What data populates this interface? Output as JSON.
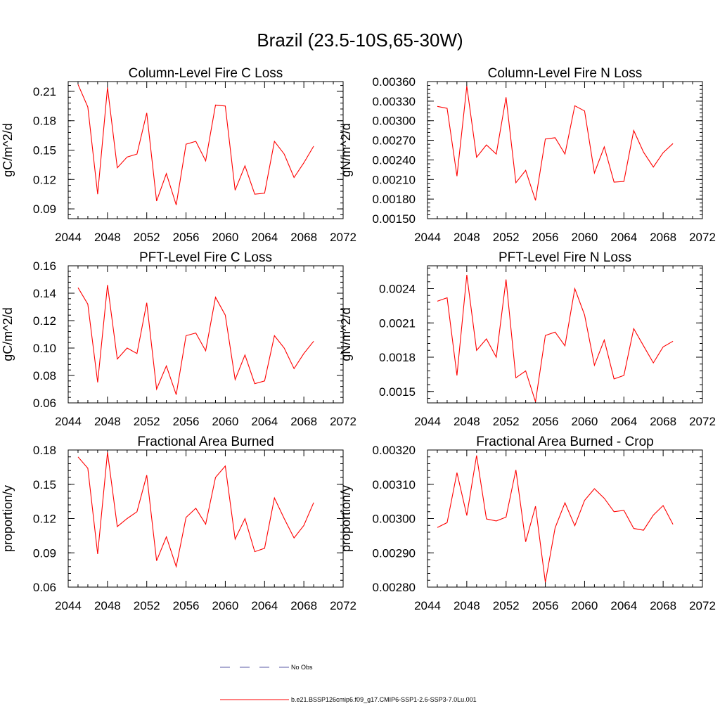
{
  "main_title": "Brazil (23.5-10S,65-30W)",
  "legend": {
    "obs_label": "No Obs",
    "obs_color": "#5a5aa6",
    "model_label": "b.e21.BSSP126cmip6.f09_g17.CMIP6-SSP1-2.6-SSP3-7.0Lu.001",
    "model_color": "#ff0000"
  },
  "chart_data": [
    {
      "type": "line",
      "title": "Column-Level Fire C Loss",
      "ylabel": "gC/m^2/d",
      "xlim": [
        2044,
        2072
      ],
      "xticks": [
        2044,
        2048,
        2052,
        2056,
        2060,
        2064,
        2068,
        2072
      ],
      "ylim": [
        0.08,
        0.22
      ],
      "yticks": [
        0.09,
        0.12,
        0.15,
        0.18,
        0.21
      ],
      "ytick_labels": [
        "0.09",
        "0.12",
        "0.15",
        "0.18",
        "0.21"
      ],
      "x": [
        2045,
        2046,
        2047,
        2048,
        2049,
        2050,
        2051,
        2052,
        2053,
        2054,
        2055,
        2056,
        2057,
        2058,
        2059,
        2060,
        2061,
        2062,
        2063,
        2064,
        2065,
        2066,
        2067,
        2068,
        2069
      ],
      "series": [
        {
          "values": [
            0.217,
            0.194,
            0.105,
            0.214,
            0.132,
            0.143,
            0.146,
            0.188,
            0.098,
            0.126,
            0.094,
            0.156,
            0.159,
            0.139,
            0.196,
            0.195,
            0.109,
            0.134,
            0.105,
            0.106,
            0.159,
            0.146,
            0.122,
            0.137,
            0.154
          ]
        }
      ]
    },
    {
      "type": "line",
      "title": "Column-Level Fire N Loss",
      "ylabel": "gN/m^2/d",
      "xlim": [
        2044,
        2072
      ],
      "xticks": [
        2044,
        2048,
        2052,
        2056,
        2060,
        2064,
        2068,
        2072
      ],
      "ylim": [
        0.0015,
        0.0036
      ],
      "yticks": [
        0.0015,
        0.0018,
        0.0021,
        0.0024,
        0.0027,
        0.003,
        0.0033,
        0.0036
      ],
      "ytick_labels": [
        "0.00150",
        "0.00180",
        "0.00210",
        "0.00240",
        "0.00270",
        "0.00300",
        "0.00330",
        "0.00360"
      ],
      "x": [
        2045,
        2046,
        2047,
        2048,
        2049,
        2050,
        2051,
        2052,
        2053,
        2054,
        2055,
        2056,
        2057,
        2058,
        2059,
        2060,
        2061,
        2062,
        2063,
        2064,
        2065,
        2066,
        2067,
        2068,
        2069
      ],
      "series": [
        {
          "values": [
            0.00322,
            0.00319,
            0.00215,
            0.00353,
            0.00244,
            0.00263,
            0.00249,
            0.00336,
            0.00205,
            0.00224,
            0.00178,
            0.00272,
            0.00274,
            0.00249,
            0.00323,
            0.00315,
            0.0022,
            0.0026,
            0.00206,
            0.00207,
            0.00285,
            0.00252,
            0.00229,
            0.00251,
            0.00265
          ]
        }
      ]
    },
    {
      "type": "line",
      "title": "PFT-Level Fire C Loss",
      "ylabel": "gC/m^2/d",
      "xlim": [
        2044,
        2072
      ],
      "xticks": [
        2044,
        2048,
        2052,
        2056,
        2060,
        2064,
        2068,
        2072
      ],
      "ylim": [
        0.06,
        0.16
      ],
      "yticks": [
        0.06,
        0.08,
        0.1,
        0.12,
        0.14,
        0.16
      ],
      "ytick_labels": [
        "0.06",
        "0.08",
        "0.10",
        "0.12",
        "0.14",
        "0.16"
      ],
      "x": [
        2045,
        2046,
        2047,
        2048,
        2049,
        2050,
        2051,
        2052,
        2053,
        2054,
        2055,
        2056,
        2057,
        2058,
        2059,
        2060,
        2061,
        2062,
        2063,
        2064,
        2065,
        2066,
        2067,
        2068,
        2069
      ],
      "series": [
        {
          "values": [
            0.144,
            0.132,
            0.075,
            0.146,
            0.092,
            0.1,
            0.096,
            0.133,
            0.07,
            0.087,
            0.066,
            0.109,
            0.111,
            0.098,
            0.137,
            0.124,
            0.077,
            0.095,
            0.074,
            0.076,
            0.109,
            0.1,
            0.085,
            0.096,
            0.105
          ]
        }
      ]
    },
    {
      "type": "line",
      "title": "PFT-Level Fire N Loss",
      "ylabel": "gN/m^2/d",
      "xlim": [
        2044,
        2072
      ],
      "xticks": [
        2044,
        2048,
        2052,
        2056,
        2060,
        2064,
        2068,
        2072
      ],
      "ylim": [
        0.0014,
        0.0026
      ],
      "yticks": [
        0.0015,
        0.0018,
        0.0021,
        0.0024
      ],
      "ytick_labels": [
        "0.0015",
        "0.0018",
        "0.0021",
        "0.0024"
      ],
      "x": [
        2045,
        2046,
        2047,
        2048,
        2049,
        2050,
        2051,
        2052,
        2053,
        2054,
        2055,
        2056,
        2057,
        2058,
        2059,
        2060,
        2061,
        2062,
        2063,
        2064,
        2065,
        2066,
        2067,
        2068,
        2069
      ],
      "series": [
        {
          "values": [
            0.00229,
            0.00232,
            0.00164,
            0.00252,
            0.00186,
            0.00196,
            0.0018,
            0.00248,
            0.00162,
            0.00168,
            0.00141,
            0.00199,
            0.00202,
            0.0019,
            0.0024,
            0.00217,
            0.00173,
            0.00195,
            0.00161,
            0.00164,
            0.00205,
            0.0019,
            0.00175,
            0.00189,
            0.00194
          ]
        }
      ]
    },
    {
      "type": "line",
      "title": "Fractional Area Burned",
      "ylabel": "proportion/y",
      "xlim": [
        2044,
        2072
      ],
      "xticks": [
        2044,
        2048,
        2052,
        2056,
        2060,
        2064,
        2068,
        2072
      ],
      "ylim": [
        0.06,
        0.18
      ],
      "yticks": [
        0.06,
        0.09,
        0.12,
        0.15,
        0.18
      ],
      "ytick_labels": [
        "0.06",
        "0.09",
        "0.12",
        "0.15",
        "0.18"
      ],
      "x": [
        2045,
        2046,
        2047,
        2048,
        2049,
        2050,
        2051,
        2052,
        2053,
        2054,
        2055,
        2056,
        2057,
        2058,
        2059,
        2060,
        2061,
        2062,
        2063,
        2064,
        2065,
        2066,
        2067,
        2068,
        2069
      ],
      "series": [
        {
          "values": [
            0.174,
            0.164,
            0.089,
            0.178,
            0.113,
            0.12,
            0.126,
            0.158,
            0.083,
            0.104,
            0.078,
            0.121,
            0.129,
            0.115,
            0.156,
            0.166,
            0.102,
            0.12,
            0.091,
            0.094,
            0.138,
            0.12,
            0.103,
            0.114,
            0.134
          ]
        }
      ]
    },
    {
      "type": "line",
      "title": "Fractional Area Burned - Crop",
      "ylabel": "proportion/y",
      "xlim": [
        2044,
        2072
      ],
      "xticks": [
        2044,
        2048,
        2052,
        2056,
        2060,
        2064,
        2068,
        2072
      ],
      "ylim": [
        0.0028,
        0.0032
      ],
      "yticks": [
        0.0028,
        0.0029,
        0.003,
        0.0031,
        0.0032
      ],
      "ytick_labels": [
        "0.00280",
        "0.00290",
        "0.00300",
        "0.00310",
        "0.00320"
      ],
      "x": [
        2045,
        2046,
        2047,
        2048,
        2049,
        2050,
        2051,
        2052,
        2053,
        2054,
        2055,
        2056,
        2057,
        2058,
        2059,
        2060,
        2061,
        2062,
        2063,
        2064,
        2065,
        2066,
        2067,
        2068,
        2069
      ],
      "series": [
        {
          "values": [
            0.002974,
            0.002988,
            0.003134,
            0.003009,
            0.003184,
            0.002999,
            0.002993,
            0.003004,
            0.003142,
            0.002932,
            0.003036,
            0.002814,
            0.002973,
            0.003046,
            0.002979,
            0.003053,
            0.003087,
            0.003059,
            0.00302,
            0.003024,
            0.002971,
            0.002966,
            0.00301,
            0.003038,
            0.002983
          ]
        }
      ]
    }
  ]
}
